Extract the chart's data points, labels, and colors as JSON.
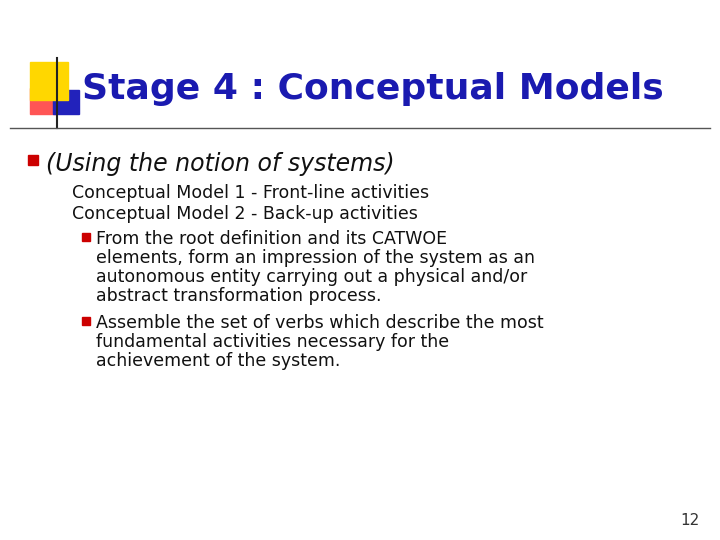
{
  "title": "Stage 4 : Conceptual Models",
  "title_color": "#1a1ab0",
  "title_fontsize": 26,
  "background_color": "#ffffff",
  "header_line_color": "#555555",
  "bullet1_text": "(Using the notion of systems)",
  "bullet1_color": "#111111",
  "bullet1_marker_color": "#CC0000",
  "sub1": "Conceptual Model 1 - Front-line activities",
  "sub2": "Conceptual Model 2 - Back-up activities",
  "sub_color": "#111111",
  "sub_fontsize": 12.5,
  "bullet2_color": "#111111",
  "bullet_marker_color": "#CC0000",
  "page_number": "12",
  "decorbox_yellow": "#FFD700",
  "decorbox_red": "#FF5555",
  "decorbox_blue": "#2222BB",
  "decorline_color": "#222222",
  "bullet2_lines": [
    "From the root definition and its CATWOE",
    "elements, form an impression of the system as an",
    "autonomous entity carrying out a physical and/or",
    "abstract transformation process."
  ],
  "bullet3_lines": [
    "Assemble the set of verbs which describe the most",
    "fundamental activities necessary for the",
    "achievement of the system."
  ]
}
